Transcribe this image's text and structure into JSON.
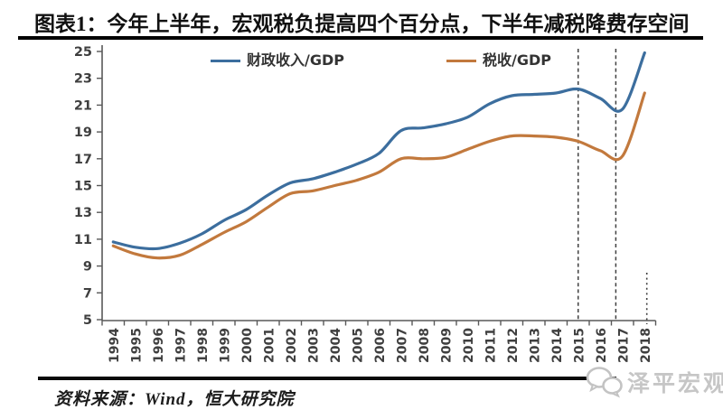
{
  "page": {
    "source": "资料来源：Wind，恒大研究院",
    "watermark": "泽平宏观"
  },
  "chart_data": {
    "type": "line",
    "title": "图表1：今年上半年，宏观税负提高四个百分点，下半年减税降费存空间",
    "categories": [
      "1994",
      "1995",
      "1996",
      "1997",
      "1998",
      "1999",
      "2000",
      "2001",
      "2002",
      "2003",
      "2004",
      "2005",
      "2006",
      "2007",
      "2008",
      "2009",
      "2010",
      "2011",
      "2012",
      "2013",
      "2014",
      "2015",
      "2016",
      "2017",
      "2018"
    ],
    "series": [
      {
        "name": "财政收入/GDP",
        "color": "#3c6e9e",
        "values": [
          10.8,
          10.4,
          10.3,
          10.7,
          11.4,
          12.4,
          13.2,
          14.3,
          15.2,
          15.5,
          16.0,
          16.6,
          17.4,
          19.1,
          19.3,
          19.6,
          20.1,
          21.1,
          21.7,
          21.8,
          21.9,
          22.2,
          21.5,
          20.7,
          24.9
        ]
      },
      {
        "name": "税收/GDP",
        "color": "#c2793d",
        "values": [
          10.5,
          9.9,
          9.6,
          9.8,
          10.6,
          11.5,
          12.3,
          13.4,
          14.4,
          14.6,
          15.0,
          15.4,
          16.0,
          17.0,
          17.0,
          17.1,
          17.7,
          18.3,
          18.7,
          18.7,
          18.6,
          18.3,
          17.6,
          17.2,
          21.9
        ]
      }
    ],
    "ylim": [
      5,
      25
    ],
    "y_ticks": [
      5,
      7,
      9,
      11,
      13,
      15,
      17,
      19,
      21,
      23,
      25
    ],
    "grid": false,
    "legend_position": "top",
    "x_labels_rotated": true,
    "annotations": {
      "vlines_at_year": [
        2015,
        2016.7
      ],
      "truncation_dots_at_year": 2018.1
    },
    "axis_color": "#595959",
    "tick_label_color": "#3f3f3f",
    "vline_color": "#404040"
  }
}
